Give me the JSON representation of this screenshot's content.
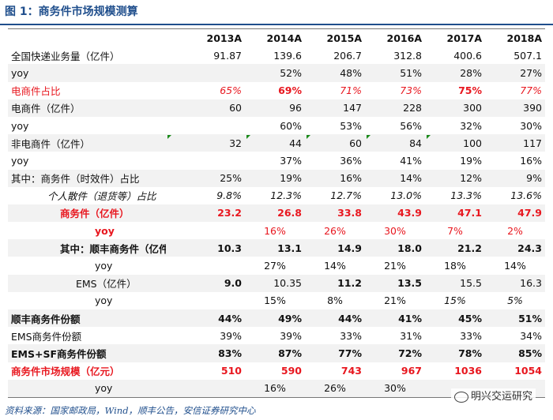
{
  "title": "图 1：商务件市场规模测算",
  "columns": [
    "",
    "2013A",
    "2014A",
    "2015A",
    "2016A",
    "2017A",
    "2018A"
  ],
  "rows": [
    {
      "label": "全国快递业务量（亿件）",
      "values": [
        "91.87",
        "139.6",
        "206.7",
        "312.8",
        "400.6",
        "507.1"
      ]
    },
    {
      "label": "yoy",
      "values": [
        "",
        "52%",
        "48%",
        "51%",
        "28%",
        "27%"
      ]
    },
    {
      "label": "电商件占比",
      "values": [
        "65%",
        "69%",
        "71%",
        "73%",
        "75%",
        "77%"
      ]
    },
    {
      "label": "电商件（亿件）",
      "values": [
        "60",
        "96",
        "147",
        "228",
        "300",
        "390"
      ]
    },
    {
      "label": "yoy",
      "values": [
        "",
        "60%",
        "53%",
        "56%",
        "32%",
        "30%"
      ]
    },
    {
      "label": "非电商件（亿件）",
      "values": [
        "32",
        "44",
        "60",
        "84",
        "100",
        "117"
      ]
    },
    {
      "label": "yoy",
      "values": [
        "",
        "37%",
        "36%",
        "41%",
        "19%",
        "16%"
      ]
    },
    {
      "label": "其中：商务件（时效件）占比",
      "values": [
        "25%",
        "19%",
        "16%",
        "14%",
        "12%",
        "9%"
      ]
    },
    {
      "label": "个人散件（退货等）占比",
      "values": [
        "9.8%",
        "12.3%",
        "12.7%",
        "13.0%",
        "13.3%",
        "13.6%"
      ]
    },
    {
      "label": "商务件（亿件）",
      "values": [
        "23.2",
        "26.8",
        "33.8",
        "43.9",
        "47.1",
        "47.9"
      ]
    },
    {
      "label": "yoy",
      "values": [
        "",
        "16%",
        "26%",
        "30%",
        "7%",
        "2%"
      ]
    },
    {
      "label": "其中：顺丰商务件（亿件",
      "values": [
        "10.3",
        "13.1",
        "14.9",
        "18.0",
        "21.2",
        "24.3"
      ]
    },
    {
      "label": "yoy",
      "values": [
        "",
        "27%",
        "14%",
        "21%",
        "18%",
        "14%"
      ]
    },
    {
      "label": "EMS（亿件）",
      "values": [
        "9.0",
        "10.35",
        "11.2",
        "13.5",
        "15.5",
        "16.3"
      ]
    },
    {
      "label": "yoy",
      "values": [
        "",
        "15%",
        "8%",
        "21%",
        "15%",
        "5%"
      ]
    },
    {
      "label": "顺丰商务件份额",
      "values": [
        "44%",
        "49%",
        "44%",
        "41%",
        "45%",
        "51%"
      ]
    },
    {
      "label": "EMS商务件份额",
      "values": [
        "39%",
        "39%",
        "33%",
        "31%",
        "33%",
        "34%"
      ]
    },
    {
      "label": "EMS+SF商务件份额",
      "values": [
        "83%",
        "87%",
        "77%",
        "72%",
        "78%",
        "85%"
      ]
    },
    {
      "label": "商务件市场规模（亿元）",
      "values": [
        "510",
        "590",
        "743",
        "967",
        "1036",
        "1054"
      ]
    },
    {
      "label": "yoy",
      "values": [
        "",
        "16%",
        "26%",
        "30%",
        "",
        ""
      ]
    }
  ],
  "source": "资料来源：国家邮政局，Wind，顺丰公告，安信证券研究中心",
  "watermark": "明兴交运研究",
  "colors": {
    "title": "#1f4e8c",
    "highlight": "#e8171f",
    "flag": "#1a8a1a"
  }
}
